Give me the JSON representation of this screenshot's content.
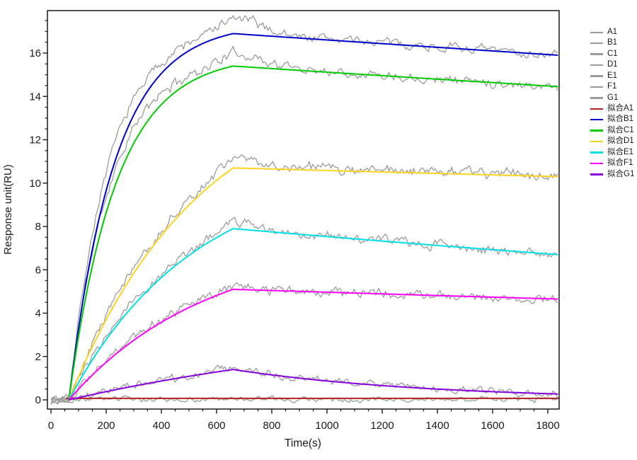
{
  "chart_data": {
    "type": "line",
    "title": "",
    "xlabel": "Time(s)",
    "ylabel": "Response unit(RU)",
    "x_ticks": [
      0,
      200,
      400,
      600,
      800,
      1000,
      1200,
      1400,
      1600,
      1800
    ],
    "y_ticks": [
      0,
      2,
      4,
      6,
      8,
      10,
      12,
      14,
      16
    ],
    "x_minor_step": 50,
    "y_minor_step": 0.5,
    "xlim": [
      -13,
      1841
    ],
    "ylim": [
      -0.43,
      17.96
    ],
    "grid": "off",
    "legend_position": "right-outside",
    "axis_color": "#1a1a1a",
    "raw_color": "#9C9C9C",
    "phases": {
      "baseline_end_s": 65,
      "association_end_s": 660,
      "end_s": 1840
    },
    "raw_series": [
      {
        "name": "A1",
        "color": "#9C9C9C",
        "flat": true,
        "level": 0.02,
        "peak": 0.05,
        "end": 0.05,
        "k_assoc": 0,
        "bump": 0,
        "noise": 0.09,
        "seed": 3
      },
      {
        "name": "B1",
        "color": "#9C9C9C",
        "flat": false,
        "level": 0,
        "peak": 17.0,
        "end": 15.9,
        "k_assoc": 0.0069,
        "bump": 0.6,
        "noise": 0.17,
        "seed": 7
      },
      {
        "name": "C1",
        "color": "#9C9C9C",
        "flat": false,
        "level": 0,
        "peak": 15.5,
        "end": 14.45,
        "k_assoc": 0.0067,
        "bump": 0.5,
        "noise": 0.17,
        "seed": 11
      },
      {
        "name": "D1",
        "color": "#9C9C9C",
        "flat": false,
        "level": 0,
        "peak": 10.78,
        "end": 10.3,
        "k_assoc": 0.0024,
        "bump": 0.4,
        "noise": 0.17,
        "seed": 17
      },
      {
        "name": "E1",
        "color": "#9C9C9C",
        "flat": false,
        "level": 0,
        "peak": 7.95,
        "end": 6.7,
        "k_assoc": 0.0025,
        "bump": 0.25,
        "noise": 0.16,
        "seed": 23
      },
      {
        "name": "F1",
        "color": "#9C9C9C",
        "flat": false,
        "level": 0,
        "peak": 5.12,
        "end": 4.65,
        "k_assoc": 0.0023,
        "bump": 0.12,
        "noise": 0.16,
        "seed": 29
      },
      {
        "name": "G1",
        "color": "#9C9C9C",
        "flat": false,
        "level": 0,
        "peak": 1.42,
        "end": 0.27,
        "k_assoc": 0.00092,
        "bump": 0.08,
        "noise": 0.13,
        "seed": 41
      }
    ],
    "fit_series": [
      {
        "name": "拟合A1",
        "color": "#B22222",
        "flat": true,
        "level": 0.07,
        "peak": 0.07,
        "end": 0.07,
        "k_assoc": 0
      },
      {
        "name": "拟合B1",
        "color": "#0000CD",
        "flat": false,
        "level": 0,
        "peak": 16.9,
        "end": 15.9,
        "k_assoc": 0.006
      },
      {
        "name": "拟合C1",
        "color": "#00CC00",
        "flat": false,
        "level": 0,
        "peak": 15.4,
        "end": 14.45,
        "k_assoc": 0.0058
      },
      {
        "name": "拟合D1",
        "color": "#FFD21E",
        "flat": false,
        "level": 0,
        "peak": 10.7,
        "end": 10.3,
        "k_assoc": 0.0021
      },
      {
        "name": "拟合E1",
        "color": "#00E0E6",
        "flat": false,
        "level": 0,
        "peak": 7.9,
        "end": 6.7,
        "k_assoc": 0.0022
      },
      {
        "name": "拟合F1",
        "color": "#FF00FF",
        "flat": false,
        "level": 0,
        "peak": 5.1,
        "end": 4.65,
        "k_assoc": 0.002
      },
      {
        "name": "拟合G1",
        "color": "#8800DD",
        "flat": false,
        "level": 0,
        "peak": 1.4,
        "end": 0.27,
        "k_assoc": 0.0008
      }
    ]
  }
}
